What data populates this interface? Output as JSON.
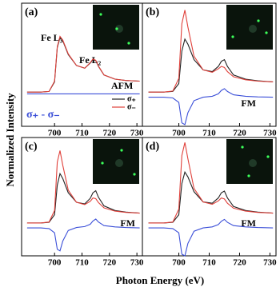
{
  "figure": {
    "xlabel": "Photon Energy (eV)",
    "ylabel": "Normalized Intensity"
  },
  "chart_data": [
    {
      "type": "line",
      "panel_label": "(a)",
      "annotations": [
        "Fe L₃",
        "Fe L₂",
        "AFM",
        "σ₊ - σ₋"
      ],
      "legend": "lower right",
      "xlim": [
        688,
        732
      ],
      "ylim": [
        -1,
        2.6
      ],
      "xticks": [
        700,
        710,
        720,
        730
      ],
      "x": [
        690,
        695,
        698,
        700,
        701,
        702,
        703,
        705,
        708,
        711,
        713,
        714,
        715,
        716,
        718,
        722,
        726,
        731
      ],
      "series": [
        {
          "name": "σ₊",
          "color": "#222222",
          "values": [
            0,
            0,
            0.02,
            0.3,
            1.3,
            1.6,
            1.5,
            1.1,
            0.78,
            0.7,
            0.85,
            0.95,
            0.92,
            0.75,
            0.5,
            0.38,
            0.34,
            0.32
          ]
        },
        {
          "name": "σ₋",
          "color": "#e0403a",
          "values": [
            0,
            0,
            0.02,
            0.32,
            1.33,
            1.63,
            1.52,
            1.12,
            0.78,
            0.7,
            0.86,
            0.97,
            0.93,
            0.76,
            0.5,
            0.38,
            0.34,
            0.32
          ]
        },
        {
          "color": "#3b4fd8",
          "values": [
            -0.05,
            -0.05,
            -0.05,
            -0.05,
            -0.05,
            -0.05,
            -0.05,
            -0.05,
            -0.05,
            -0.05,
            -0.05,
            -0.05,
            -0.05,
            -0.05,
            -0.05,
            -0.05,
            -0.05,
            -0.05
          ]
        }
      ]
    },
    {
      "type": "line",
      "panel_label": "(b)",
      "annotations": [
        "FM"
      ],
      "xlim": [
        688,
        732
      ],
      "ylim": [
        -1,
        2.6
      ],
      "xticks": [
        700,
        710,
        720,
        730
      ],
      "x": [
        690,
        695,
        698,
        700,
        701,
        702,
        703,
        705,
        708,
        711,
        713,
        714,
        715,
        716,
        718,
        722,
        726,
        731
      ],
      "series": [
        {
          "color": "#222222",
          "values": [
            0,
            0,
            0.02,
            0.25,
            1.2,
            1.55,
            1.4,
            0.95,
            0.65,
            0.6,
            0.75,
            0.9,
            0.95,
            0.75,
            0.5,
            0.38,
            0.33,
            0.3
          ]
        },
        {
          "color": "#e0403a",
          "values": [
            0,
            0,
            0.03,
            0.4,
            2.0,
            2.4,
            1.9,
            1.05,
            0.65,
            0.58,
            0.68,
            0.75,
            0.72,
            0.6,
            0.45,
            0.36,
            0.32,
            0.3
          ]
        },
        {
          "color": "#3b4fd8",
          "values": [
            -0.15,
            -0.15,
            -0.17,
            -0.3,
            -0.9,
            -0.95,
            -0.6,
            -0.25,
            -0.15,
            -0.12,
            -0.05,
            0.05,
            0.1,
            0.02,
            -0.08,
            -0.12,
            -0.14,
            -0.15
          ]
        }
      ]
    },
    {
      "type": "line",
      "panel_label": "(c)",
      "annotations": [
        "FM"
      ],
      "xlim": [
        688,
        732
      ],
      "ylim": [
        -1,
        2.6
      ],
      "xticks": [
        700,
        710,
        720,
        730
      ],
      "x": [
        690,
        695,
        698,
        700,
        701,
        702,
        703,
        705,
        708,
        711,
        713,
        714,
        715,
        716,
        718,
        722,
        726,
        731
      ],
      "series": [
        {
          "color": "#222222",
          "values": [
            0,
            0,
            0.02,
            0.25,
            1.15,
            1.5,
            1.35,
            0.92,
            0.63,
            0.58,
            0.75,
            0.92,
            0.98,
            0.78,
            0.52,
            0.38,
            0.33,
            0.3
          ]
        },
        {
          "color": "#e0403a",
          "values": [
            0,
            0,
            0.03,
            0.38,
            1.85,
            2.2,
            1.75,
            1.0,
            0.63,
            0.56,
            0.66,
            0.76,
            0.74,
            0.62,
            0.46,
            0.36,
            0.32,
            0.3
          ]
        },
        {
          "color": "#3b4fd8",
          "values": [
            -0.15,
            -0.15,
            -0.17,
            -0.3,
            -0.8,
            -0.85,
            -0.55,
            -0.23,
            -0.14,
            -0.11,
            -0.04,
            0.06,
            0.12,
            0.03,
            -0.08,
            -0.12,
            -0.14,
            -0.15
          ]
        }
      ]
    },
    {
      "type": "line",
      "panel_label": "(d)",
      "annotations": [
        "FM"
      ],
      "xlim": [
        688,
        732
      ],
      "ylim": [
        -1,
        2.6
      ],
      "xticks": [
        700,
        710,
        720,
        730
      ],
      "x": [
        690,
        695,
        698,
        700,
        701,
        702,
        703,
        705,
        708,
        711,
        713,
        714,
        715,
        716,
        718,
        722,
        726,
        731
      ],
      "series": [
        {
          "color": "#222222",
          "values": [
            0,
            0,
            0.02,
            0.25,
            1.2,
            1.55,
            1.4,
            0.95,
            0.64,
            0.6,
            0.76,
            0.92,
            0.97,
            0.76,
            0.5,
            0.38,
            0.33,
            0.3
          ]
        },
        {
          "color": "#e0403a",
          "values": [
            0,
            0,
            0.03,
            0.42,
            2.05,
            2.45,
            1.95,
            1.05,
            0.64,
            0.57,
            0.67,
            0.76,
            0.73,
            0.6,
            0.45,
            0.36,
            0.32,
            0.3
          ]
        },
        {
          "color": "#3b4fd8",
          "values": [
            -0.15,
            -0.15,
            -0.17,
            -0.3,
            -0.95,
            -1.0,
            -0.62,
            -0.25,
            -0.15,
            -0.12,
            -0.05,
            0.05,
            0.11,
            0.02,
            -0.08,
            -0.12,
            -0.14,
            -0.15
          ]
        }
      ]
    }
  ]
}
